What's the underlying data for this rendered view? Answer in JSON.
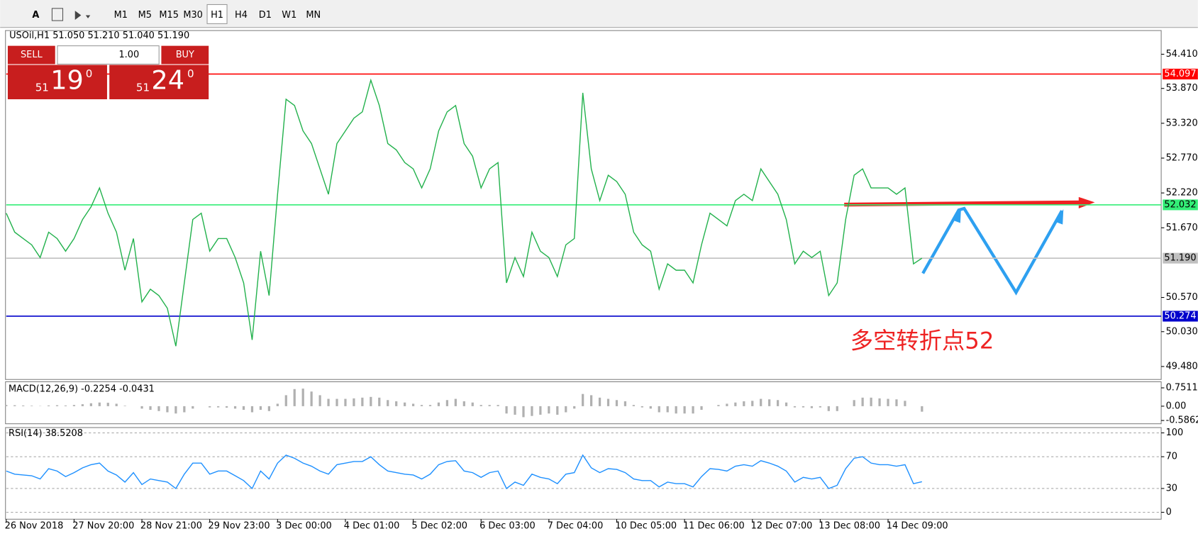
{
  "toolbar": {
    "timeframes": [
      "M1",
      "M5",
      "M15",
      "M30",
      "H1",
      "H4",
      "D1",
      "W1",
      "MN"
    ],
    "active": "H1"
  },
  "trade_panel": {
    "sell": "SELL",
    "buy": "BUY",
    "lot": "1.00",
    "sell_price": {
      "big": "51",
      "main": "19",
      "sup": "0"
    },
    "buy_price": {
      "big": "51",
      "main": "24",
      "sup": "0"
    }
  },
  "chart_data": [
    {
      "type": "line",
      "title": "USOil,H1  51.050 51.210 51.040 51.190",
      "categories": [
        "26 Nov 2018",
        null,
        null,
        null,
        null,
        null,
        null,
        null,
        "27 Nov 20:00",
        null,
        null,
        null,
        null,
        null,
        null,
        null,
        "28 Nov 21:00",
        null,
        null,
        null,
        null,
        null,
        null,
        null,
        "29 Nov 23:00",
        null,
        null,
        null,
        null,
        null,
        null,
        null,
        "3 Dec 00:00",
        null,
        null,
        null,
        null,
        null,
        null,
        null,
        "4 Dec 01:00",
        null,
        null,
        null,
        null,
        null,
        null,
        null,
        "5 Dec 02:00",
        null,
        null,
        null,
        null,
        null,
        null,
        null,
        "6 Dec 03:00",
        null,
        null,
        null,
        null,
        null,
        null,
        null,
        "7 Dec 04:00",
        null,
        null,
        null,
        null,
        null,
        null,
        null,
        "10 Dec 05:00",
        null,
        null,
        null,
        null,
        null,
        null,
        null,
        "11 Dec 06:00",
        null,
        null,
        null,
        null,
        null,
        null,
        null,
        "12 Dec 07:00",
        null,
        null,
        null,
        null,
        null,
        null,
        null,
        "13 Dec 08:00",
        null,
        null,
        null,
        null,
        null,
        null,
        null,
        "14 Dec 09:00",
        null,
        null,
        null,
        null
      ],
      "series": [
        {
          "color": "#22b14c",
          "values": [
            51.9,
            51.6,
            51.5,
            51.4,
            51.2,
            51.6,
            51.5,
            51.3,
            51.5,
            51.8,
            52.0,
            52.3,
            51.9,
            51.6,
            51.0,
            51.5,
            50.5,
            50.7,
            50.6,
            50.4,
            49.8,
            50.8,
            51.8,
            51.9,
            51.3,
            51.5,
            51.5,
            51.2,
            50.8,
            49.9,
            51.3,
            50.6,
            52.2,
            53.7,
            53.6,
            53.2,
            53.0,
            52.6,
            52.2,
            53.0,
            53.2,
            53.4,
            53.5,
            54.0,
            53.6,
            53.0,
            52.9,
            52.7,
            52.6,
            52.3,
            52.6,
            53.2,
            53.5,
            53.6,
            53.0,
            52.8,
            52.3,
            52.6,
            52.7,
            50.8,
            51.2,
            50.9,
            51.6,
            51.3,
            51.2,
            50.9,
            51.4,
            51.5,
            53.8,
            52.6,
            52.1,
            52.5,
            52.4,
            52.2,
            51.6,
            51.4,
            51.3,
            50.7,
            51.1,
            51.0,
            51.0,
            50.8,
            51.4,
            51.9,
            51.8,
            51.7,
            52.1,
            52.2,
            52.1,
            52.6,
            52.4,
            52.2,
            51.8,
            51.1,
            51.3,
            51.2,
            51.3,
            50.6,
            50.8,
            51.8,
            52.5,
            52.6,
            52.3,
            52.3,
            52.3,
            52.2,
            52.3,
            51.1,
            51.19
          ]
        }
      ],
      "ylim": [
        49.275,
        54.784
      ],
      "yticks": [
        {
          "value": 54.41,
          "label": "54.410"
        },
        {
          "value": 53.87,
          "label": "53.870"
        },
        {
          "value": 53.32,
          "label": "53.320"
        },
        {
          "value": 52.77,
          "label": "52.770"
        },
        {
          "value": 52.22,
          "label": "52.220"
        },
        {
          "value": 51.67,
          "label": "51.670"
        },
        {
          "value": 50.57,
          "label": "50.570"
        },
        {
          "value": 50.03,
          "label": "50.030"
        },
        {
          "value": 49.48,
          "label": "49.480"
        }
      ],
      "hlines": [
        {
          "value": 54.097,
          "color": "#ff0000"
        },
        {
          "value": 52.032,
          "color": "#33ee77"
        },
        {
          "value": 50.274,
          "color": "#0000cc"
        },
        {
          "value": 51.19,
          "label": "51.190",
          "color": "#c0c0c0"
        }
      ],
      "annotation": "多空转折点52"
    },
    {
      "type": "bar",
      "title": "MACD(12,26,9) -0.2254 -0.0431",
      "color": "#b0b0b0",
      "values": [
        0.05,
        0.04,
        0.03,
        0.02,
        0.01,
        0.03,
        0.04,
        0.03,
        0.05,
        0.08,
        0.12,
        0.15,
        0.14,
        0.1,
        0.02,
        0.0,
        -0.1,
        -0.15,
        -0.2,
        -0.25,
        -0.3,
        -0.25,
        -0.1,
        0.0,
        -0.05,
        -0.05,
        -0.06,
        -0.1,
        -0.15,
        -0.25,
        -0.15,
        -0.2,
        0.1,
        0.45,
        0.7,
        0.72,
        0.6,
        0.45,
        0.3,
        0.3,
        0.3,
        0.32,
        0.35,
        0.38,
        0.35,
        0.25,
        0.2,
        0.15,
        0.1,
        0.05,
        0.05,
        0.15,
        0.25,
        0.3,
        0.2,
        0.15,
        0.05,
        0.05,
        0.05,
        -0.3,
        -0.35,
        -0.45,
        -0.4,
        -0.35,
        -0.3,
        -0.35,
        -0.25,
        -0.1,
        0.5,
        0.45,
        0.35,
        0.3,
        0.25,
        0.2,
        0.05,
        -0.05,
        -0.1,
        -0.25,
        -0.25,
        -0.3,
        -0.3,
        -0.3,
        -0.15,
        0.0,
        0.05,
        0.1,
        0.15,
        0.2,
        0.22,
        0.3,
        0.28,
        0.25,
        0.15,
        -0.05,
        -0.05,
        -0.08,
        -0.05,
        -0.2,
        -0.2,
        0.0,
        0.25,
        0.35,
        0.35,
        0.32,
        0.3,
        0.28,
        0.22,
        0.0,
        -0.2254
      ],
      "ylim": [
        -0.72,
        1.0
      ],
      "yticks": [
        0.7511,
        {
          "value": 0,
          "label": "0.00"
        },
        -0.5862
      ]
    },
    {
      "type": "line",
      "title": "RSI(14) 38.5208",
      "color": "#1e90ff",
      "values": [
        52,
        48,
        47,
        46,
        42,
        55,
        52,
        45,
        50,
        56,
        60,
        62,
        52,
        47,
        38,
        50,
        35,
        42,
        40,
        38,
        30,
        48,
        62,
        62,
        48,
        52,
        52,
        46,
        40,
        30,
        52,
        42,
        62,
        72,
        68,
        62,
        58,
        52,
        48,
        60,
        62,
        64,
        64,
        70,
        60,
        52,
        50,
        48,
        47,
        42,
        48,
        60,
        64,
        65,
        52,
        50,
        44,
        50,
        52,
        30,
        38,
        34,
        48,
        44,
        42,
        36,
        48,
        50,
        72,
        56,
        50,
        55,
        54,
        50,
        42,
        40,
        40,
        32,
        38,
        36,
        36,
        32,
        45,
        55,
        54,
        52,
        58,
        60,
        58,
        65,
        62,
        58,
        52,
        38,
        44,
        42,
        44,
        30,
        34,
        55,
        68,
        70,
        62,
        60,
        60,
        58,
        60,
        36,
        38.52
      ],
      "ylim": [
        -8.7,
        106.7
      ],
      "yticks": [
        100,
        70,
        30,
        0
      ]
    }
  ]
}
